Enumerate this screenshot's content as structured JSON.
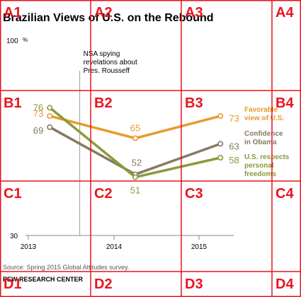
{
  "chart_data": {
    "type": "line",
    "title": "Brazilian Views of U.S. on the Rebound",
    "x": [
      2013,
      2014,
      2015
    ],
    "x_tick_labels": [
      "2013",
      "2014",
      "2015"
    ],
    "y_axis": {
      "min": 30,
      "max": 100,
      "tick_labels": [
        "30",
        "100"
      ],
      "unit": "%"
    },
    "annotation": {
      "x": 2013.6,
      "text": [
        "NSA spying",
        "revelations about",
        "Pres. Rousseff"
      ]
    },
    "series": [
      {
        "name_lines": [
          "Favorable",
          "view of U.S."
        ],
        "color": "#E89A2E",
        "points": [
          {
            "x": 2013.25,
            "y": 73,
            "label": "73"
          },
          {
            "x": 2014.25,
            "y": 65,
            "label": "65"
          },
          {
            "x": 2015.25,
            "y": 73,
            "label": "73"
          }
        ]
      },
      {
        "name_lines": [
          "Confidence",
          "in Obama"
        ],
        "color": "#857A62",
        "points": [
          {
            "x": 2013.25,
            "y": 69,
            "label": "69"
          },
          {
            "x": 2014.25,
            "y": 52,
            "label": "52"
          },
          {
            "x": 2015.25,
            "y": 63,
            "label": "63"
          }
        ]
      },
      {
        "name_lines": [
          "U.S. respects",
          "personal",
          "freedoms"
        ],
        "color": "#8A9A3C",
        "points": [
          {
            "x": 2013.25,
            "y": 76,
            "label": "76"
          },
          {
            "x": 2014.25,
            "y": 51,
            "label": "51"
          },
          {
            "x": 2015.25,
            "y": 58,
            "label": "58"
          }
        ]
      }
    ]
  },
  "source": "Source: Spring 2015 Global Attitudes survey.",
  "brand": "PEW RESEARCH CENTER",
  "overlay_grid": {
    "color": "#E8141E",
    "columns": [
      "1",
      "2",
      "3",
      "4"
    ],
    "rows": [
      "A",
      "B",
      "C",
      "D"
    ]
  }
}
